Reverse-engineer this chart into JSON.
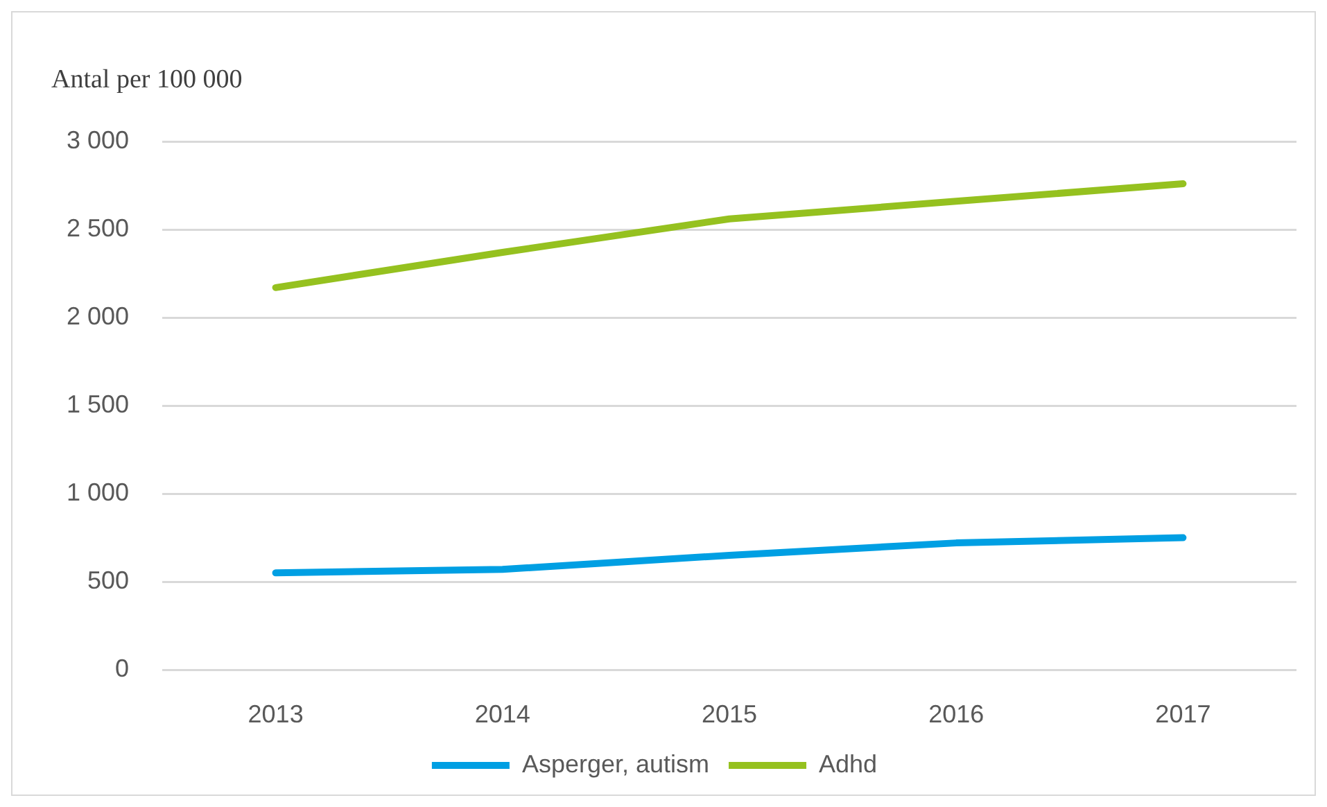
{
  "chart_data": {
    "type": "line",
    "ylabel": "Antal per 100 000",
    "categories": [
      "2013",
      "2014",
      "2015",
      "2016",
      "2017"
    ],
    "series": [
      {
        "name": "Asperger, autism",
        "color": "#009fe3",
        "values": [
          550,
          570,
          650,
          720,
          750
        ]
      },
      {
        "name": "Adhd",
        "color": "#95c11f",
        "values": [
          2170,
          2370,
          2560,
          2660,
          2760
        ]
      }
    ],
    "ylim": [
      0,
      3000
    ],
    "yticks": [
      0,
      500,
      {
        "value": 1000,
        "label": "1 000"
      },
      {
        "value": 1500,
        "label": "1 500"
      },
      {
        "value": 2000,
        "label": "2 000"
      },
      {
        "value": 2500,
        "label": "2 500"
      },
      {
        "value": 3000,
        "label": "3 000"
      }
    ],
    "grid": "y",
    "legend": "bottom"
  }
}
